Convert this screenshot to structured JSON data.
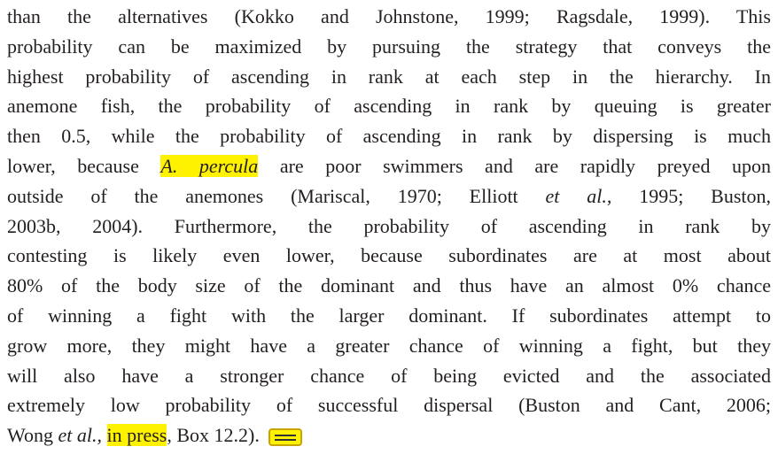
{
  "paragraph": {
    "lines": [
      [
        {
          "text": "than the alternatives (Kokko and Johnstone, 1999; Ragsdale, 1999). This"
        }
      ],
      [
        {
          "text": "probability can be maximized by pursuing the strategy that conveys the"
        }
      ],
      [
        {
          "text": "highest probability of ascending in rank at each step in the hierarchy. In"
        }
      ],
      [
        {
          "text": "anemone fish, the probability of ascending in rank by queuing is greater"
        }
      ],
      [
        {
          "text": "then 0.5, while the probability of ascending in rank by dispersing is much"
        }
      ],
      [
        {
          "text": "lower, because "
        },
        {
          "text": "A. percula",
          "italic": true,
          "highlight": true
        },
        {
          "text": " are poor swimmers and are rapidly preyed upon"
        }
      ],
      [
        {
          "text": "outside of the anemones (Mariscal, 1970; Elliott "
        },
        {
          "text": "et al.,",
          "italic": true
        },
        {
          "text": " 1995; Buston,"
        }
      ],
      [
        {
          "text": "2003b, 2004). Furthermore, the probability of ascending in rank by"
        }
      ],
      [
        {
          "text": "contesting is likely even lower, because subordinates are at most about"
        }
      ],
      [
        {
          "text": "80% of the body size of the dominant and thus have an almost 0% chance"
        }
      ],
      [
        {
          "text": "of winning a fight with the larger dominant. If subordinates attempt to"
        }
      ],
      [
        {
          "text": "grow more, they might have a greater chance of winning a fight, but they"
        }
      ],
      [
        {
          "text": "will also have a stronger chance of being evicted and the associated"
        }
      ],
      [
        {
          "text": "extremely low probability of successful dispersal (Buston and Cant, 2006;"
        }
      ],
      [
        {
          "text": "Wong "
        },
        {
          "text": "et al.,",
          "italic": true
        },
        {
          "text": " "
        },
        {
          "text": "in press",
          "highlight": true
        },
        {
          "text": ", Box 12.2)."
        }
      ]
    ]
  }
}
